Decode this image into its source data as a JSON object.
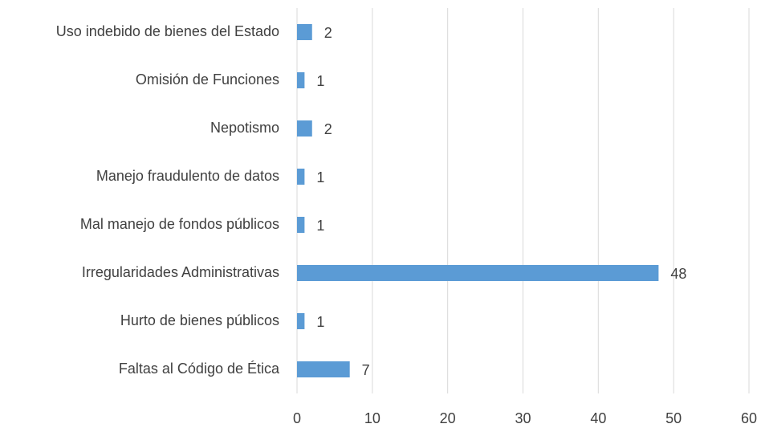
{
  "chart_data": {
    "type": "bar",
    "orientation": "horizontal",
    "categories": [
      "Uso indebido de bienes del Estado",
      "Omisión de Funciones",
      "Nepotismo",
      "Manejo fraudulento de datos",
      "Mal manejo de fondos públicos",
      "Irregularidades Administrativas",
      "Hurto de bienes públicos",
      "Faltas al Código de Ética"
    ],
    "values": [
      2,
      1,
      2,
      1,
      1,
      48,
      1,
      7
    ],
    "color": "#5b9bd5",
    "xlim": [
      0,
      60
    ],
    "xticks": [
      0,
      10,
      20,
      30,
      40,
      50,
      60
    ],
    "grid": true
  }
}
